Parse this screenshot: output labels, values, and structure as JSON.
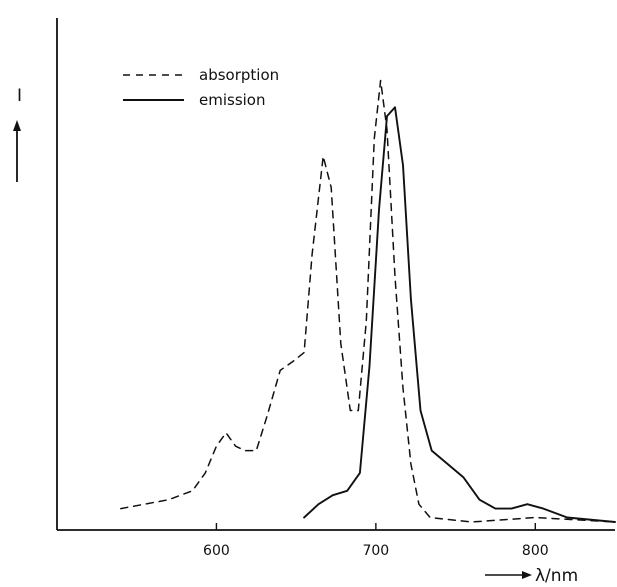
{
  "chart_data": {
    "type": "line",
    "title": "",
    "ylabel": "I",
    "xlabel": "λ/nm",
    "xlim": [
      500,
      850
    ],
    "ylim": [
      0,
      1
    ],
    "xticks": [
      600,
      700,
      800
    ],
    "xtick_labels": [
      "600",
      "700",
      "800"
    ],
    "grid": false,
    "legend_position": "top-left",
    "series": [
      {
        "name": "absorption",
        "style": "dashed",
        "color": "#111111",
        "points": [
          [
            540,
            0.03
          ],
          [
            570,
            0.05
          ],
          [
            585,
            0.07
          ],
          [
            593,
            0.11
          ],
          [
            600,
            0.17
          ],
          [
            606,
            0.2
          ],
          [
            612,
            0.17
          ],
          [
            618,
            0.16
          ],
          [
            625,
            0.16
          ],
          [
            632,
            0.24
          ],
          [
            640,
            0.34
          ],
          [
            648,
            0.36
          ],
          [
            655,
            0.38
          ],
          [
            660,
            0.6
          ],
          [
            667,
            0.82
          ],
          [
            672,
            0.75
          ],
          [
            678,
            0.4
          ],
          [
            684,
            0.25
          ],
          [
            689,
            0.25
          ],
          [
            694,
            0.45
          ],
          [
            699,
            0.86
          ],
          [
            703,
            0.99
          ],
          [
            707,
            0.88
          ],
          [
            712,
            0.55
          ],
          [
            717,
            0.3
          ],
          [
            722,
            0.13
          ],
          [
            727,
            0.04
          ],
          [
            734,
            0.01
          ],
          [
            760,
            0.0
          ],
          [
            800,
            0.01
          ],
          [
            850,
            0.0
          ]
        ]
      },
      {
        "name": "emission",
        "style": "solid",
        "color": "#111111",
        "points": [
          [
            655,
            0.01
          ],
          [
            664,
            0.04
          ],
          [
            673,
            0.06
          ],
          [
            682,
            0.07
          ],
          [
            690,
            0.11
          ],
          [
            696,
            0.35
          ],
          [
            702,
            0.7
          ],
          [
            707,
            0.91
          ],
          [
            712,
            0.93
          ],
          [
            717,
            0.8
          ],
          [
            722,
            0.5
          ],
          [
            728,
            0.25
          ],
          [
            735,
            0.16
          ],
          [
            745,
            0.13
          ],
          [
            755,
            0.1
          ],
          [
            765,
            0.05
          ],
          [
            775,
            0.03
          ],
          [
            785,
            0.03
          ],
          [
            795,
            0.04
          ],
          [
            805,
            0.03
          ],
          [
            820,
            0.01
          ],
          [
            850,
            0.0
          ]
        ]
      }
    ]
  }
}
